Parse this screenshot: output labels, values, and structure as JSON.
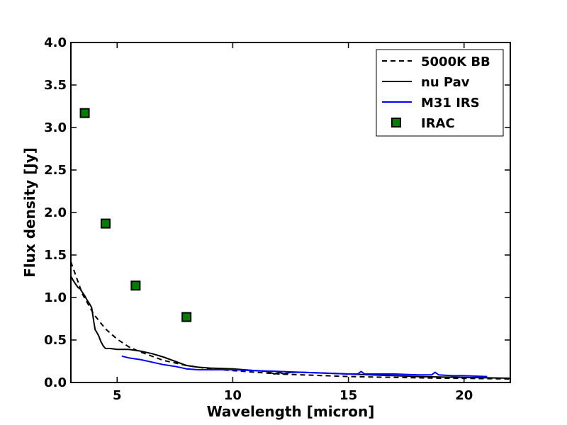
{
  "chart_data": {
    "type": "line",
    "xlabel": "Wavelength [micron]",
    "ylabel": "Flux density [Jy]",
    "xlim": [
      3.0,
      22.0
    ],
    "ylim": [
      0.0,
      4.0
    ],
    "x_ticks": [
      5,
      10,
      15,
      20
    ],
    "x_tick_labels": [
      "5",
      "10",
      "15",
      "20"
    ],
    "y_ticks": [
      0.0,
      0.5,
      1.0,
      1.5,
      2.0,
      2.5,
      3.0,
      3.5,
      4.0
    ],
    "y_tick_labels": [
      "0.0",
      "0.5",
      "1.0",
      "1.5",
      "2.0",
      "2.5",
      "3.0",
      "3.5",
      "4.0"
    ],
    "grid": false,
    "legend_position": "top-right",
    "series": [
      {
        "name": "5000K BB",
        "style": "dashed",
        "color": "#000000",
        "x": [
          3.0,
          3.5,
          4.0,
          4.5,
          5.0,
          5.5,
          6.0,
          7.0,
          8.0,
          9.0,
          10.0,
          11.0,
          12.0,
          13.0,
          14.0,
          15.0,
          16.0,
          17.0,
          18.0,
          19.0,
          20.0,
          21.0,
          22.0
        ],
        "y": [
          1.42,
          1.04,
          0.8,
          0.63,
          0.51,
          0.42,
          0.36,
          0.26,
          0.2,
          0.16,
          0.14,
          0.12,
          0.1,
          0.09,
          0.08,
          0.07,
          0.065,
          0.06,
          0.055,
          0.05,
          0.048,
          0.045,
          0.042
        ]
      },
      {
        "name": "nu Pav",
        "style": "solid",
        "color": "#000000",
        "x": [
          3.0,
          3.1,
          3.2,
          3.3,
          3.4,
          3.5,
          3.6,
          3.7,
          3.8,
          3.9,
          4.0,
          4.05,
          4.1,
          4.2,
          4.3,
          4.4,
          4.5,
          4.7,
          5.0,
          5.5,
          6.0,
          6.5,
          7.0,
          7.5,
          8.0,
          8.5,
          9.0,
          10.0,
          11.0,
          11.5,
          11.8,
          12.0,
          12.2,
          12.5,
          13.0,
          14.0,
          15.0,
          16.0,
          17.0,
          18.0,
          19.0,
          20.0,
          21.0,
          22.0
        ],
        "y": [
          1.25,
          1.2,
          1.16,
          1.12,
          1.1,
          1.06,
          1.02,
          0.97,
          0.93,
          0.88,
          0.7,
          0.62,
          0.6,
          0.55,
          0.48,
          0.43,
          0.4,
          0.4,
          0.39,
          0.39,
          0.37,
          0.34,
          0.3,
          0.25,
          0.2,
          0.18,
          0.17,
          0.16,
          0.14,
          0.13,
          0.1,
          0.12,
          0.1,
          0.12,
          0.12,
          0.11,
          0.1,
          0.09,
          0.08,
          0.07,
          0.065,
          0.06,
          0.055,
          0.05
        ]
      },
      {
        "name": "M31 IRS",
        "style": "solid",
        "color": "#0000ff",
        "x": [
          5.2,
          5.5,
          6.0,
          6.5,
          7.0,
          7.5,
          8.0,
          8.5,
          9.0,
          10.0,
          11.0,
          12.0,
          13.0,
          14.0,
          15.0,
          15.4,
          15.55,
          15.7,
          16.0,
          17.0,
          18.0,
          18.6,
          18.75,
          18.9,
          19.5,
          20.0,
          21.0
        ],
        "y": [
          0.31,
          0.29,
          0.27,
          0.24,
          0.21,
          0.19,
          0.16,
          0.15,
          0.15,
          0.15,
          0.14,
          0.13,
          0.12,
          0.11,
          0.1,
          0.1,
          0.13,
          0.1,
          0.1,
          0.1,
          0.09,
          0.09,
          0.12,
          0.09,
          0.08,
          0.08,
          0.07
        ]
      },
      {
        "name": "IRAC",
        "style": "marker",
        "marker": "square",
        "color": "#007f00",
        "x": [
          3.6,
          4.5,
          5.8,
          8.0
        ],
        "y": [
          3.17,
          1.87,
          1.14,
          0.77
        ]
      }
    ]
  }
}
